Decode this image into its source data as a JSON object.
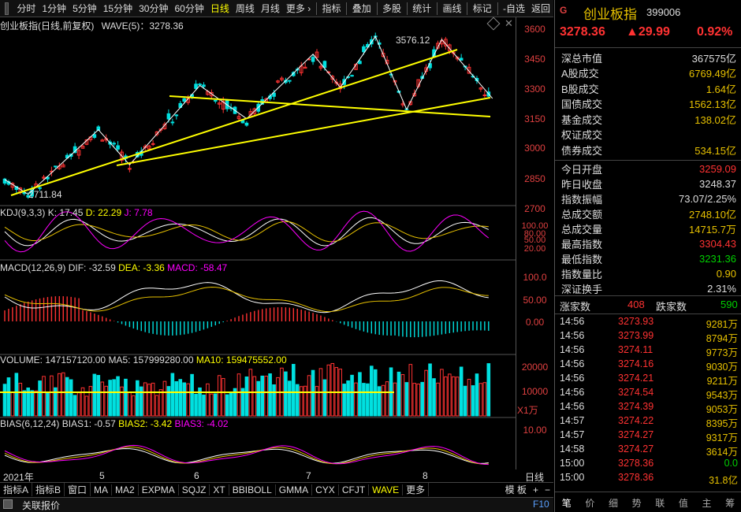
{
  "toolbar": {
    "periods": [
      "分时",
      "1分钟",
      "5分钟",
      "15分钟",
      "30分钟",
      "60分钟",
      "日线",
      "周线",
      "月线",
      "更多 ›"
    ],
    "tools": [
      "指标",
      "叠加",
      "多股",
      "统计",
      "画线",
      "标记",
      "-自选",
      "返回"
    ]
  },
  "main_info": {
    "name": "创业板指(日线,前复权)",
    "wave": "WAVE(5)：3278.36",
    "high_label": "3576.12",
    "low_label": "2711.84",
    "y_ticks": [
      "3600",
      "3450",
      "3300",
      "3150",
      "3000",
      "2850",
      "2700"
    ]
  },
  "kdj": {
    "label": "KDJ(9,3,3)",
    "k": "K: 17.45",
    "d": "D: 22.29",
    "j": "J: 7.78",
    "y_ticks": [
      "100.00",
      "80.00",
      "50.00",
      "20.00"
    ]
  },
  "macd": {
    "label": "MACD(12,26,9)",
    "dif": "DIF: -32.59",
    "dea": "DEA: -3.36",
    "macd": "MACD: -58.47",
    "y_ticks": [
      "100.0",
      "50.00",
      "0.00"
    ]
  },
  "volume": {
    "label": "VOLUME: 147157120.00",
    "ma5": "MA5: 157999280.00",
    "ma10": "MA10: 159475552.00",
    "y_ticks": [
      "20000",
      "10000"
    ],
    "unit": "X1万"
  },
  "bias": {
    "label": "BIAS(6,12,24)",
    "b1": "BIAS1: -0.57",
    "b2": "BIAS2: -3.42",
    "b3": "BIAS3: -4.02",
    "y_ticks": [
      "10.00"
    ]
  },
  "x_axis": {
    "labels": [
      "2021年",
      "5",
      "6",
      "7",
      "8"
    ],
    "period": "日线"
  },
  "indicator_tabs": [
    "指标A",
    "指标B",
    "窗口",
    "MA",
    "MA2",
    "EXPMA",
    "SQJZ",
    "XT",
    "BBIBOLL",
    "GMMA",
    "CYX",
    "CFJT",
    "WAVE",
    "更多"
  ],
  "panel_label": "模 板",
  "status": {
    "quote": "关联报价",
    "f10": "F10"
  },
  "quote": {
    "market_icon": "G",
    "name": "创业板指",
    "code": "399006",
    "price": "3278.36",
    "change": "▲29.99",
    "pct": "0.92%",
    "stats1": [
      {
        "label": "深总市值",
        "value": "367575亿"
      },
      {
        "label": "A股成交",
        "value": "6769.49亿"
      },
      {
        "label": "B股成交",
        "value": "1.64亿"
      },
      {
        "label": "国债成交",
        "value": "1562.13亿"
      },
      {
        "label": "基金成交",
        "value": "138.02亿"
      },
      {
        "label": "权证成交",
        "value": ""
      },
      {
        "label": "债券成交",
        "value": "534.15亿"
      }
    ],
    "stats2": [
      {
        "label": "今日开盘",
        "value": "3259.09"
      },
      {
        "label": "昨日收盘",
        "value": "3248.37"
      },
      {
        "label": "指数振幅",
        "value": "73.07/2.25%"
      },
      {
        "label": "总成交额",
        "value": "2748.10亿"
      },
      {
        "label": "总成交量",
        "value": "14715.7万"
      },
      {
        "label": "最高指数",
        "value": "3304.43"
      },
      {
        "label": "最低指数",
        "value": "3231.36"
      },
      {
        "label": "指数量比",
        "value": "0.90"
      },
      {
        "label": "深证换手",
        "value": "2.31%"
      }
    ],
    "breadth": {
      "up_label": "涨家数",
      "up": "408",
      "down_label": "跌家数",
      "down": "590"
    },
    "ticks": [
      {
        "t": "14:56",
        "p": "3273.93",
        "v": "9281万"
      },
      {
        "t": "14:56",
        "p": "3273.99",
        "v": "8794万"
      },
      {
        "t": "14:56",
        "p": "3274.11",
        "v": "9773万"
      },
      {
        "t": "14:56",
        "p": "3274.16",
        "v": "9030万"
      },
      {
        "t": "14:56",
        "p": "3274.21",
        "v": "9211万"
      },
      {
        "t": "14:56",
        "p": "3274.54",
        "v": "9543万"
      },
      {
        "t": "14:56",
        "p": "3274.39",
        "v": "9053万"
      },
      {
        "t": "14:57",
        "p": "3274.22",
        "v": "8395万"
      },
      {
        "t": "14:57",
        "p": "3274.27",
        "v": "9317万"
      },
      {
        "t": "14:58",
        "p": "3274.27",
        "v": "3614万"
      },
      {
        "t": "15:00",
        "p": "3278.36",
        "v": "0.0"
      },
      {
        "t": "15:00",
        "p": "3278.36",
        "v": "31.8亿"
      }
    ],
    "tabs": [
      "笔",
      "价",
      "细",
      "势",
      "联",
      "值",
      "主",
      "筹"
    ]
  },
  "colors": {
    "up": "#ff3232",
    "down": "#00e0e0",
    "ma": "#ffffff",
    "trendline": "#ffff00",
    "accent": "#e6c000"
  }
}
